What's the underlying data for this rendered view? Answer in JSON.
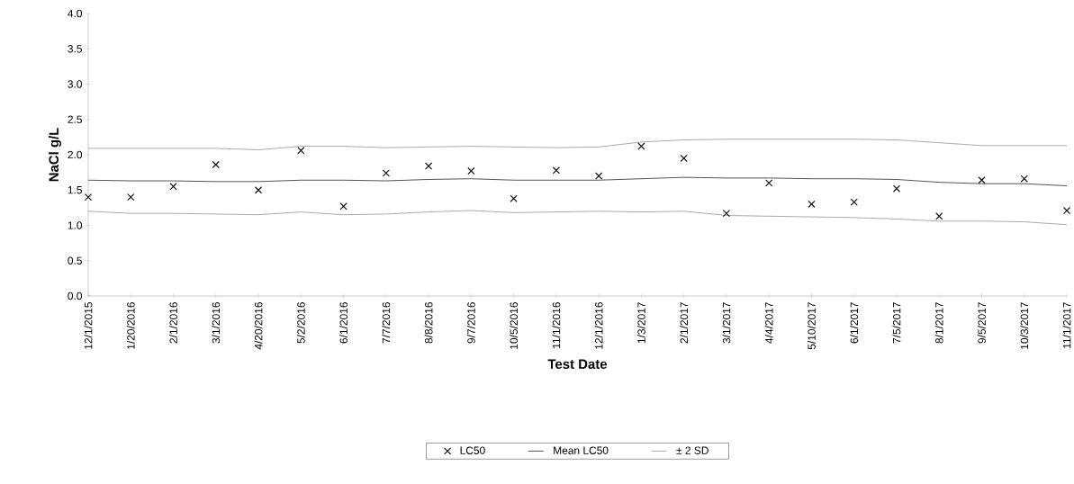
{
  "chart_data": {
    "type": "scatter",
    "xlabel": "Test Date",
    "ylabel": "NaCl g/L",
    "categories": [
      "12/1/2015",
      "1/20/2016",
      "2/1/2016",
      "3/1/2016",
      "4/20/2016",
      "5/2/2016",
      "6/1/2016",
      "7/7/2016",
      "8/8/2016",
      "9/7/2016",
      "10/5/2016",
      "11/1/2016",
      "12/1/2016",
      "1/3/2017",
      "2/1/2017",
      "3/1/2017",
      "4/4/2017",
      "5/10/2017",
      "6/1/2017",
      "7/5/2017",
      "8/1/2017",
      "9/5/2017",
      "10/3/2017",
      "11/1/2017"
    ],
    "series": [
      {
        "name": "LC50",
        "marker": "cross",
        "color": "#111111",
        "values": [
          1.4,
          1.4,
          1.55,
          1.86,
          1.5,
          2.06,
          1.27,
          1.74,
          1.84,
          1.77,
          1.38,
          1.78,
          1.7,
          2.12,
          1.95,
          1.17,
          1.6,
          1.3,
          1.33,
          1.52,
          1.13,
          1.64,
          1.66,
          1.21
        ]
      },
      {
        "name": "Mean LC50",
        "type": "line",
        "marker": "none",
        "line_style": "solid",
        "color": "#555555",
        "values": [
          1.64,
          1.63,
          1.63,
          1.62,
          1.62,
          1.64,
          1.64,
          1.63,
          1.65,
          1.66,
          1.64,
          1.64,
          1.64,
          1.66,
          1.68,
          1.67,
          1.67,
          1.66,
          1.66,
          1.65,
          1.61,
          1.59,
          1.59,
          1.56
        ]
      },
      {
        "name": "± 2 SD",
        "type": "line",
        "marker": "none",
        "line_style": "solid",
        "color": "#aaaaaa",
        "values": [
          2.09,
          2.09,
          2.09,
          2.09,
          2.07,
          2.12,
          2.12,
          2.1,
          2.11,
          2.12,
          2.11,
          2.1,
          2.11,
          2.18,
          2.21,
          2.22,
          2.22,
          2.22,
          2.22,
          2.21,
          2.17,
          2.13,
          2.13,
          2.13
        ]
      },
      {
        "type": "line",
        "marker": "none",
        "line_style": "solid",
        "color": "#aaaaaa",
        "values": [
          1.2,
          1.17,
          1.17,
          1.16,
          1.15,
          1.19,
          1.15,
          1.16,
          1.19,
          1.21,
          1.18,
          1.19,
          1.2,
          1.19,
          1.2,
          1.14,
          1.13,
          1.12,
          1.11,
          1.09,
          1.06,
          1.06,
          1.05,
          1.01
        ]
      }
    ],
    "ylim": [
      0,
      4
    ],
    "yticks": [
      {
        "value": 0,
        "label": "0.0"
      },
      {
        "value": 0.5,
        "label": "0.5"
      },
      {
        "value": 1,
        "label": "1.0"
      },
      {
        "value": 1.5,
        "label": "1.5"
      },
      {
        "value": 2,
        "label": "2.0"
      },
      {
        "value": 2.5,
        "label": "2.5"
      },
      {
        "value": 3,
        "label": "3.0"
      },
      {
        "value": 3.5,
        "label": "3.5"
      },
      {
        "value": 4,
        "label": "4.0"
      }
    ],
    "grid": false,
    "legend": "bottom"
  }
}
